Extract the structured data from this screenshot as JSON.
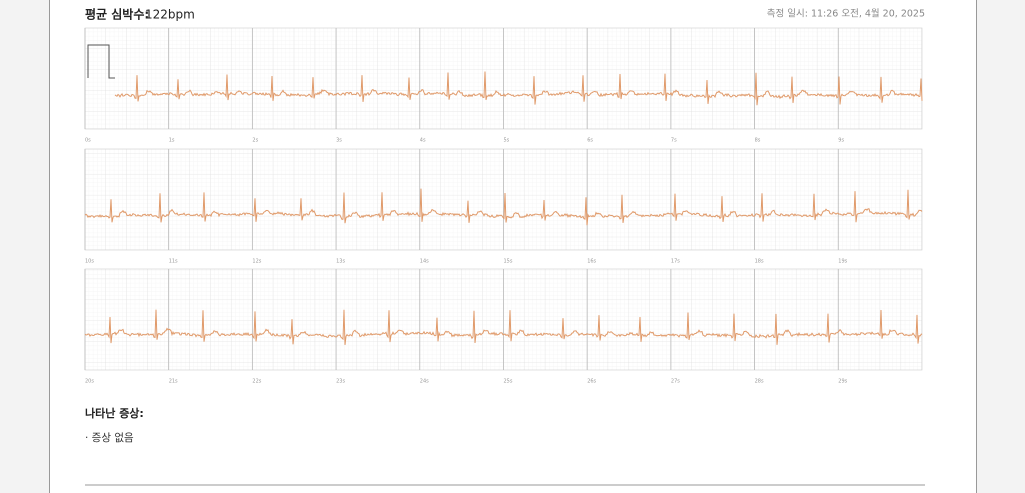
{
  "header": {
    "heart_rate_label": "평균 심박수:",
    "heart_rate_value": "122bpm",
    "timestamp": "측정 일시: 11:26 오전, 4월 20, 2025"
  },
  "strips": [
    {
      "time_labels": [
        "0s",
        "1s",
        "2s",
        "3s",
        "4s",
        "5s",
        "6s",
        "7s",
        "8s",
        "9s"
      ]
    },
    {
      "time_labels": [
        "10s",
        "11s",
        "12s",
        "13s",
        "14s",
        "15s",
        "16s",
        "17s",
        "18s",
        "19s"
      ]
    },
    {
      "time_labels": [
        "20s",
        "21s",
        "22s",
        "23s",
        "24s",
        "25s",
        "26s",
        "27s",
        "28s",
        "29s"
      ]
    }
  ],
  "symptoms": {
    "title": "나타난 증상:",
    "items": [
      "· 증상 없음"
    ]
  }
}
